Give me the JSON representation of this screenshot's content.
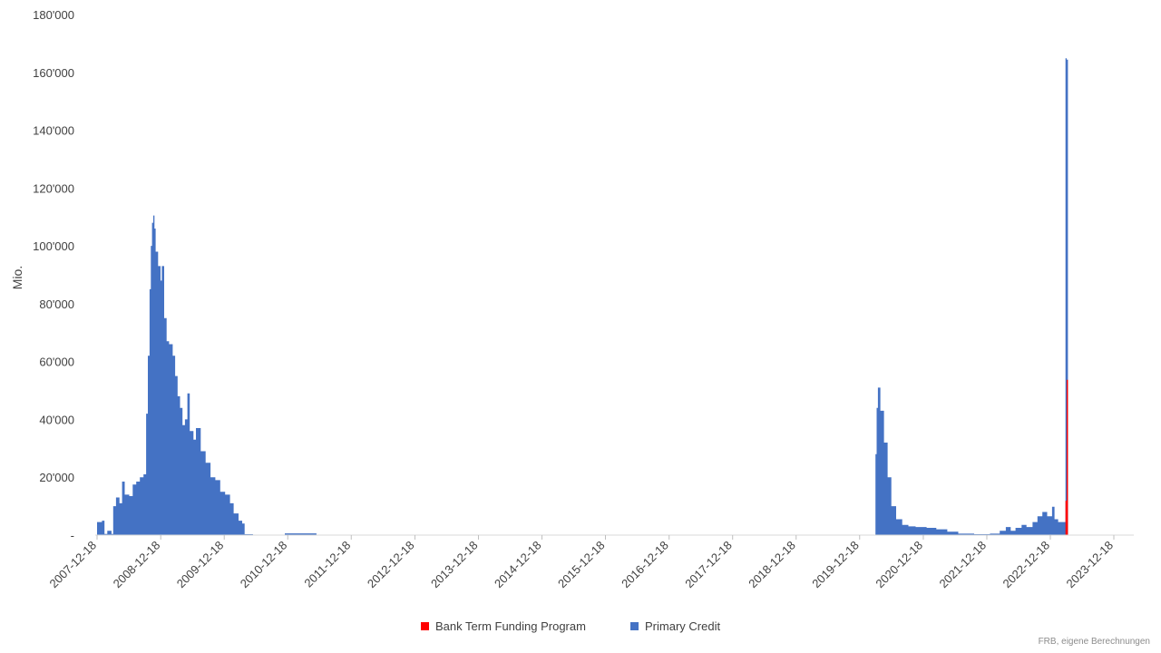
{
  "chart_data": {
    "type": "area",
    "ylabel": "Mio.",
    "ylim": [
      0,
      180000
    ],
    "y_ticks": [
      "-",
      "20'000",
      "40'000",
      "60'000",
      "80'000",
      "100'000",
      "120'000",
      "140'000",
      "160'000",
      "180'000"
    ],
    "x_ticks": [
      "2007-12-18",
      "2008-12-18",
      "2009-12-18",
      "2010-12-18",
      "2011-12-18",
      "2012-12-18",
      "2013-12-18",
      "2014-12-18",
      "2015-12-18",
      "2016-12-18",
      "2017-12-18",
      "2018-12-18",
      "2019-12-18",
      "2020-12-18",
      "2021-12-18",
      "2022-12-18",
      "2023-12-18"
    ],
    "legend_position": "bottom",
    "source_note": "FRB, eigene Berechnungen",
    "series": [
      {
        "name": "Bank Term Funding Program",
        "color": "#ff0000",
        "points": [
          [
            "2023-03-08",
            0
          ],
          [
            "2023-03-15",
            11900
          ],
          [
            "2023-03-22",
            53700
          ],
          [
            "2023-03-29",
            0
          ]
        ]
      },
      {
        "name": "Primary Credit",
        "color": "#4472c4",
        "points": [
          [
            "2007-12-18",
            4500
          ],
          [
            "2008-01-15",
            5000
          ],
          [
            "2008-01-30",
            400
          ],
          [
            "2008-02-15",
            1500
          ],
          [
            "2008-03-10",
            400
          ],
          [
            "2008-03-20",
            10000
          ],
          [
            "2008-04-05",
            13000
          ],
          [
            "2008-04-25",
            11000
          ],
          [
            "2008-05-10",
            18500
          ],
          [
            "2008-05-25",
            14000
          ],
          [
            "2008-06-20",
            13500
          ],
          [
            "2008-07-10",
            17500
          ],
          [
            "2008-07-30",
            18500
          ],
          [
            "2008-08-20",
            20000
          ],
          [
            "2008-09-10",
            21000
          ],
          [
            "2008-09-25",
            42000
          ],
          [
            "2008-10-05",
            62000
          ],
          [
            "2008-10-15",
            85000
          ],
          [
            "2008-10-22",
            100000
          ],
          [
            "2008-10-29",
            108000
          ],
          [
            "2008-11-05",
            110500
          ],
          [
            "2008-11-12",
            106000
          ],
          [
            "2008-11-19",
            98000
          ],
          [
            "2008-12-03",
            93000
          ],
          [
            "2008-12-17",
            88000
          ],
          [
            "2008-12-24",
            93000
          ],
          [
            "2009-01-07",
            75000
          ],
          [
            "2009-01-21",
            67000
          ],
          [
            "2009-02-04",
            66000
          ],
          [
            "2009-02-25",
            62000
          ],
          [
            "2009-03-11",
            55000
          ],
          [
            "2009-03-25",
            48000
          ],
          [
            "2009-04-08",
            44000
          ],
          [
            "2009-04-22",
            38000
          ],
          [
            "2009-05-06",
            40000
          ],
          [
            "2009-05-20",
            49000
          ],
          [
            "2009-06-03",
            36000
          ],
          [
            "2009-06-24",
            33000
          ],
          [
            "2009-07-08",
            37000
          ],
          [
            "2009-08-05",
            29000
          ],
          [
            "2009-09-02",
            25000
          ],
          [
            "2009-09-30",
            20000
          ],
          [
            "2009-10-28",
            19000
          ],
          [
            "2009-11-25",
            15000
          ],
          [
            "2009-12-23",
            14000
          ],
          [
            "2010-01-20",
            11000
          ],
          [
            "2010-02-10",
            7500
          ],
          [
            "2010-03-10",
            5000
          ],
          [
            "2010-03-31",
            4000
          ],
          [
            "2010-04-14",
            300
          ],
          [
            "2010-06-01",
            100
          ],
          [
            "2010-12-01",
            600
          ],
          [
            "2011-06-01",
            50
          ],
          [
            "2015-01-01",
            50
          ],
          [
            "2016-01-01",
            80
          ],
          [
            "2019-12-01",
            50
          ],
          [
            "2020-03-11",
            100
          ],
          [
            "2020-03-18",
            28000
          ],
          [
            "2020-03-25",
            44000
          ],
          [
            "2020-04-01",
            51000
          ],
          [
            "2020-04-15",
            43000
          ],
          [
            "2020-05-06",
            32000
          ],
          [
            "2020-05-27",
            20000
          ],
          [
            "2020-06-17",
            10000
          ],
          [
            "2020-07-15",
            5500
          ],
          [
            "2020-08-19",
            3500
          ],
          [
            "2020-09-23",
            3000
          ],
          [
            "2020-11-04",
            2800
          ],
          [
            "2021-01-06",
            2500
          ],
          [
            "2021-03-03",
            2000
          ],
          [
            "2021-05-05",
            1200
          ],
          [
            "2021-07-07",
            500
          ],
          [
            "2021-10-06",
            300
          ],
          [
            "2022-01-05",
            500
          ],
          [
            "2022-03-02",
            1500
          ],
          [
            "2022-04-06",
            2800
          ],
          [
            "2022-05-04",
            1500
          ],
          [
            "2022-06-01",
            2500
          ],
          [
            "2022-07-06",
            3500
          ],
          [
            "2022-08-03",
            2800
          ],
          [
            "2022-09-07",
            4500
          ],
          [
            "2022-10-05",
            6500
          ],
          [
            "2022-11-02",
            8000
          ],
          [
            "2022-11-30",
            6500
          ],
          [
            "2022-12-28",
            9800
          ],
          [
            "2023-01-11",
            5500
          ],
          [
            "2023-02-01",
            4500
          ],
          [
            "2023-03-01",
            4500
          ],
          [
            "2023-03-08",
            4500
          ],
          [
            "2023-03-15",
            153000
          ],
          [
            "2023-03-22",
            110700
          ],
          [
            "2023-03-29",
            0
          ]
        ]
      }
    ]
  }
}
